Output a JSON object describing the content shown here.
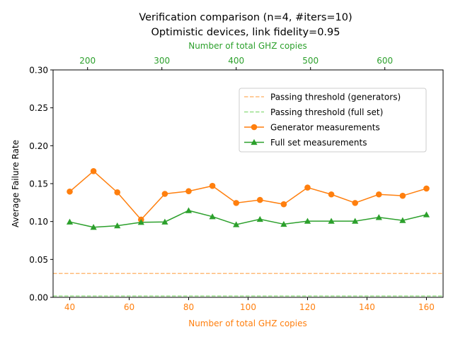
{
  "chart_data": {
    "type": "line",
    "title_line1": "Verification comparison (n=4, #iters=10)",
    "title_line2": "Optimistic devices, link fidelity=0.95",
    "xlabel": "Number of total GHZ copies",
    "xlabel_top": "Number of total GHZ copies",
    "ylabel": "Average Failure Rate",
    "xlim": [
      34.4,
      165.6
    ],
    "ylim": [
      0,
      0.3
    ],
    "xlim_top": [
      153.6,
      678.4
    ],
    "x_ticks": [
      40,
      60,
      80,
      100,
      120,
      140,
      160
    ],
    "x_tick_labels": [
      "40",
      "60",
      "80",
      "100",
      "120",
      "140",
      "160"
    ],
    "x_ticks_top": [
      200,
      300,
      400,
      500,
      600
    ],
    "x_tick_labels_top": [
      "200",
      "300",
      "400",
      "500",
      "600"
    ],
    "y_ticks": [
      0,
      0.05,
      0.1,
      0.15,
      0.2,
      0.25,
      0.3
    ],
    "y_tick_labels": [
      "0.00",
      "0.05",
      "0.10",
      "0.15",
      "0.20",
      "0.25",
      "0.30"
    ],
    "grid": false,
    "legend_position": "upper-right",
    "x": [
      40,
      48,
      56,
      64,
      72,
      80,
      88,
      96,
      104,
      112,
      120,
      128,
      136,
      144,
      152,
      160
    ],
    "series": [
      {
        "name": "Generator measurements",
        "color": "#ff7f0e",
        "marker": "circle",
        "values": [
          0.1395,
          0.1665,
          0.1385,
          0.1025,
          0.1365,
          0.14,
          0.147,
          0.1245,
          0.1285,
          0.1228,
          0.1448,
          0.1358,
          0.1245,
          0.1358,
          0.134,
          0.1435
        ]
      },
      {
        "name": "Full set measurements",
        "color": "#2ca02c",
        "marker": "triangle",
        "values": [
          0.0995,
          0.0925,
          0.0945,
          0.099,
          0.0995,
          0.1145,
          0.1065,
          0.096,
          0.103,
          0.0965,
          0.1005,
          0.1005,
          0.1005,
          0.1055,
          0.1015,
          0.109
        ]
      }
    ],
    "thresholds": [
      {
        "name": "Passing threshold (generators)",
        "value": 0.0315,
        "color": "#ffbb78"
      },
      {
        "name": "Passing threshold (full set)",
        "value": 0.0018,
        "color": "#98df8a"
      }
    ],
    "bottom_axis_color": "#ff7f0e",
    "top_axis_color": "#2ca02c"
  }
}
